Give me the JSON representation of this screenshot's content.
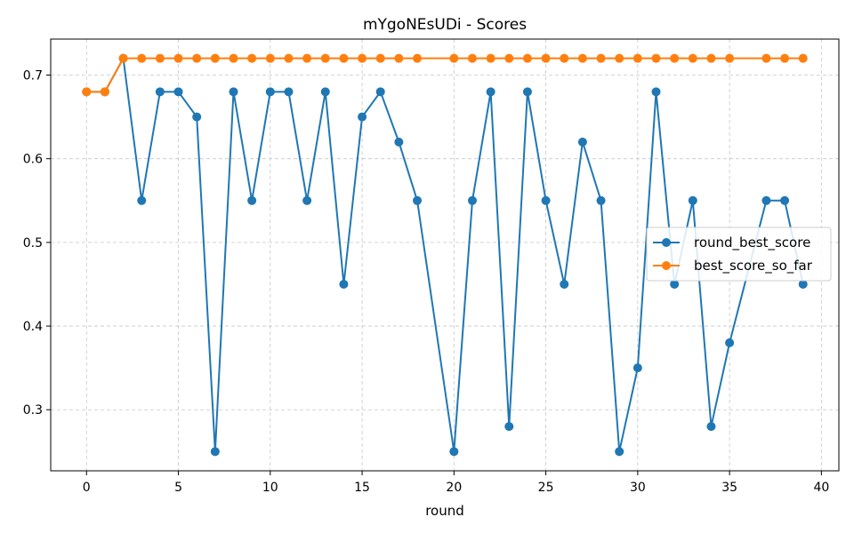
{
  "chart_data": {
    "type": "line",
    "title": "mYgoNEsUDi - Scores",
    "xlabel": "round",
    "ylabel": "",
    "xlim": [
      -1.95,
      40.95
    ],
    "ylim": [
      0.227,
      0.743
    ],
    "xticks": [
      0,
      5,
      10,
      15,
      20,
      25,
      30,
      35,
      40
    ],
    "yticks": [
      0.3,
      0.4,
      0.5,
      0.6,
      0.7
    ],
    "grid": true,
    "legend_position": "center-right",
    "series": [
      {
        "name": "round_best_score",
        "color": "#1f77b4",
        "x": [
          0,
          1,
          2,
          3,
          4,
          5,
          6,
          7,
          8,
          9,
          10,
          11,
          12,
          13,
          14,
          15,
          16,
          17,
          18,
          20,
          21,
          22,
          23,
          24,
          25,
          26,
          27,
          28,
          29,
          30,
          31,
          32,
          33,
          34,
          35,
          37,
          38,
          39
        ],
        "y": [
          0.68,
          0.68,
          0.72,
          0.55,
          0.68,
          0.68,
          0.65,
          0.25,
          0.68,
          0.55,
          0.68,
          0.68,
          0.55,
          0.68,
          0.45,
          0.65,
          0.68,
          0.62,
          0.55,
          0.25,
          0.55,
          0.68,
          0.28,
          0.68,
          0.55,
          0.45,
          0.62,
          0.55,
          0.25,
          0.35,
          0.68,
          0.45,
          0.55,
          0.28,
          0.38,
          0.55,
          0.55,
          0.45
        ]
      },
      {
        "name": "best_score_so_far",
        "color": "#ff7f0e",
        "x": [
          0,
          1,
          2,
          3,
          4,
          5,
          6,
          7,
          8,
          9,
          10,
          11,
          12,
          13,
          14,
          15,
          16,
          17,
          18,
          20,
          21,
          22,
          23,
          24,
          25,
          26,
          27,
          28,
          29,
          30,
          31,
          32,
          33,
          34,
          35,
          37,
          38,
          39
        ],
        "y": [
          0.68,
          0.68,
          0.72,
          0.72,
          0.72,
          0.72,
          0.72,
          0.72,
          0.72,
          0.72,
          0.72,
          0.72,
          0.72,
          0.72,
          0.72,
          0.72,
          0.72,
          0.72,
          0.72,
          0.72,
          0.72,
          0.72,
          0.72,
          0.72,
          0.72,
          0.72,
          0.72,
          0.72,
          0.72,
          0.72,
          0.72,
          0.72,
          0.72,
          0.72,
          0.72,
          0.72,
          0.72,
          0.72
        ]
      }
    ]
  }
}
